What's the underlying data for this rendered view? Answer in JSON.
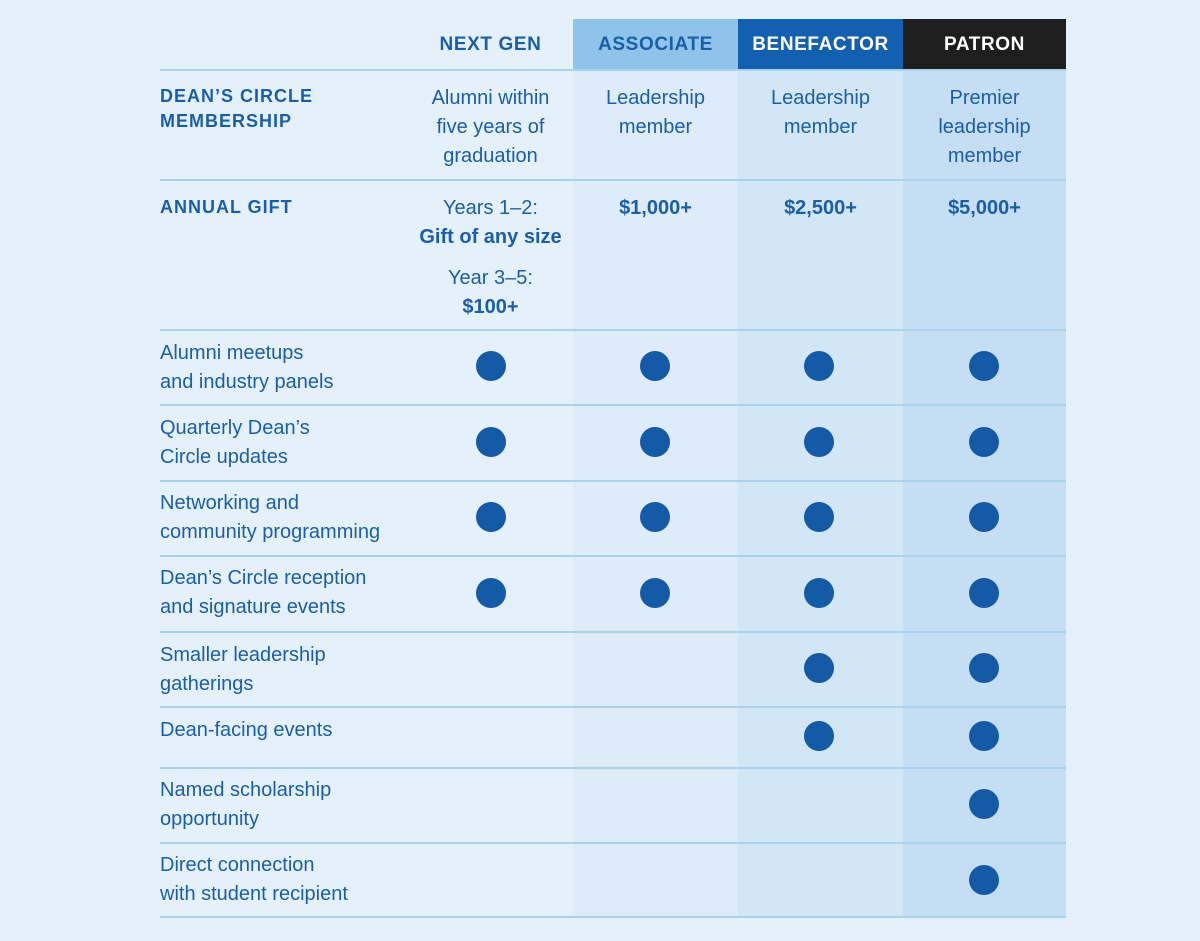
{
  "tiers": [
    "NEXT GEN",
    "ASSOCIATE",
    "BENEFACTOR",
    "PATRON"
  ],
  "membership": {
    "label_line1": "DEAN’S CIRCLE",
    "label_line2": "MEMBERSHIP",
    "values": [
      [
        "Alumni within",
        "five years of",
        "graduation"
      ],
      [
        "Leadership",
        "member"
      ],
      [
        "Leadership",
        "member"
      ],
      [
        "Premier",
        "leadership",
        "member"
      ]
    ]
  },
  "annual_gift": {
    "label": "ANNUAL GIFT",
    "next_gen": {
      "line1": "Years 1–2:",
      "line2": "Gift of any size",
      "line3": "Year 3–5:",
      "line4": "$100+"
    },
    "associate": "$1,000+",
    "benefactor": "$2,500+",
    "patron": "$5,000+"
  },
  "benefits": [
    {
      "line1": "Alumni meetups",
      "line2": "and industry panels",
      "included": [
        true,
        true,
        true,
        true
      ]
    },
    {
      "line1": "Quarterly Dean’s",
      "line2": "Circle updates",
      "included": [
        true,
        true,
        true,
        true
      ]
    },
    {
      "line1": "Networking and",
      "line2": "community programming",
      "included": [
        true,
        true,
        true,
        true
      ]
    },
    {
      "line1": "Dean’s Circle reception",
      "line2": "and signature events",
      "included": [
        true,
        true,
        true,
        true
      ]
    },
    {
      "line1": "Smaller leadership",
      "line2": "gatherings",
      "included": [
        false,
        false,
        true,
        true
      ]
    },
    {
      "line1": "Dean-facing events",
      "line2": "",
      "included": [
        false,
        false,
        true,
        true
      ]
    },
    {
      "line1": "Named scholarship",
      "line2": "opportunity",
      "included": [
        false,
        false,
        false,
        true
      ]
    },
    {
      "line1": "Direct connection",
      "line2": "with student recipient",
      "included": [
        false,
        false,
        false,
        true
      ]
    }
  ],
  "colors": {
    "text": "#1b5ea8",
    "dot": "#145aa6",
    "associate_header": "#8ec4ea",
    "benefactor_header": "#1460b0",
    "patron_header": "#1e1e1e"
  }
}
